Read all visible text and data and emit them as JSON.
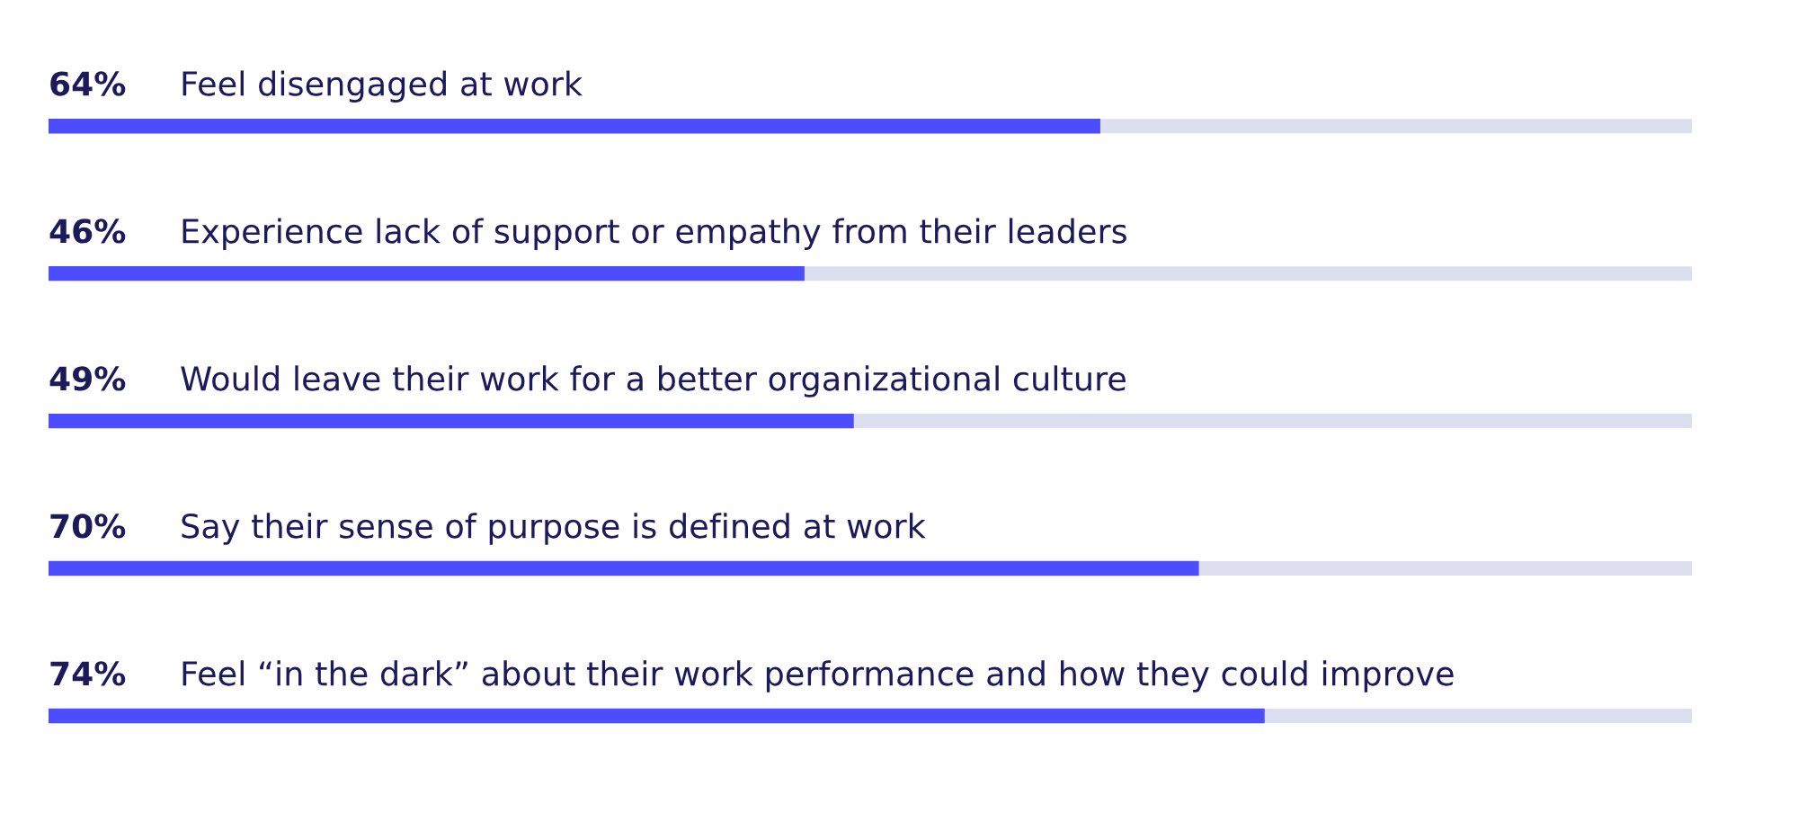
{
  "chart_data": {
    "type": "bar",
    "orientation": "horizontal",
    "categories": [
      "Feel disengaged at work",
      "Experience lack of support or empathy from their leaders",
      "Would leave their work for a better organizational culture",
      "Say their sense of purpose is defined at work",
      "Feel “in the dark” about their work performance and how they could improve"
    ],
    "series": [
      {
        "color": "#4b4dff",
        "values": [
          64,
          46,
          49,
          70,
          74
        ],
        "value_labels": [
          "64%",
          "46%",
          "49%",
          "70%",
          "74%"
        ]
      }
    ],
    "xlim": [
      0,
      100
    ],
    "grid": "y"
  }
}
